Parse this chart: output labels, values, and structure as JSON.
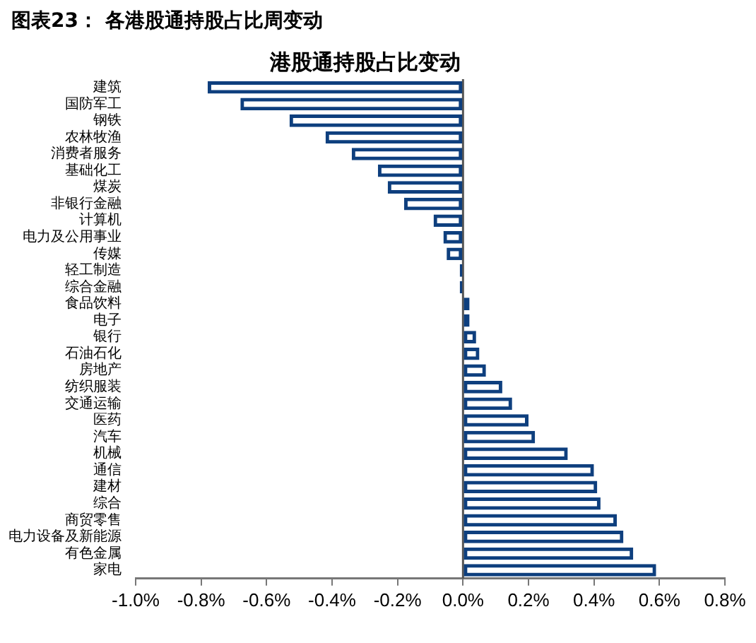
{
  "chart_data": {
    "type": "bar",
    "orientation": "horizontal",
    "title": "港股通持股占比变动",
    "annotations": [
      "图表23： 各港股通持股占比周变动"
    ],
    "categories": [
      "建筑",
      "国防军工",
      "钢铁",
      "农林牧渔",
      "消费者服务",
      "基础化工",
      "煤炭",
      "非银行金融",
      "计算机",
      "电力及公用事业",
      "传媒",
      "轻工制造",
      "综合金融",
      "食品饮料",
      "电子",
      "银行",
      "石油石化",
      "房地产",
      "纺织服装",
      "交通运输",
      "医药",
      "汽车",
      "机械",
      "通信",
      "建材",
      "综合",
      "商贸零售",
      "电力设备及新能源",
      "有色金属",
      "家电"
    ],
    "values": [
      -0.78,
      -0.68,
      -0.53,
      -0.42,
      -0.34,
      -0.26,
      -0.23,
      -0.18,
      -0.09,
      -0.06,
      -0.05,
      -0.01,
      -0.01,
      0.02,
      0.02,
      0.04,
      0.05,
      0.07,
      0.12,
      0.15,
      0.2,
      0.22,
      0.32,
      0.4,
      0.41,
      0.42,
      0.47,
      0.49,
      0.52,
      0.59
    ],
    "color": "#0e3f7e",
    "xlim": [
      -1.0,
      0.8
    ],
    "xticks": [
      {
        "value": -1.0,
        "label": "-1.0%"
      },
      {
        "value": -0.8,
        "label": "-0.8%"
      },
      {
        "value": -0.6,
        "label": "-0.6%"
      },
      {
        "value": -0.4,
        "label": "-0.4%"
      },
      {
        "value": -0.2,
        "label": "-0.2%"
      },
      {
        "value": 0.0,
        "label": "0.0%"
      },
      {
        "value": 0.2,
        "label": "0.2%"
      },
      {
        "value": 0.4,
        "label": "0.4%"
      },
      {
        "value": 0.6,
        "label": "0.6%"
      },
      {
        "value": 0.8,
        "label": "0.8%"
      }
    ],
    "ref_lines": [
      {
        "axis": "x",
        "value": 0,
        "color": "#555555"
      }
    ],
    "legend": false,
    "grid": false
  }
}
